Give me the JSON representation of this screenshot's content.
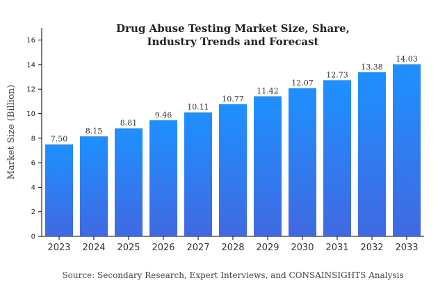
{
  "chart_data": {
    "type": "bar",
    "title_lines": [
      "Drug Abuse Testing Market Size, Share,",
      "Industry Trends and Forecast"
    ],
    "xlabel": "",
    "ylabel": "Market Size (Billion)",
    "source": "Source: Secondary Research, Expert Interviews, and CONSAINSIGHTS Analysis",
    "categories": [
      "2023",
      "2024",
      "2025",
      "2026",
      "2027",
      "2028",
      "2029",
      "2030",
      "2031",
      "2032",
      "2033"
    ],
    "values": [
      7.5,
      8.15,
      8.81,
      9.46,
      10.11,
      10.77,
      11.42,
      12.07,
      12.73,
      13.38,
      14.03
    ],
    "value_labels": [
      "7.50",
      "8.15",
      "8.81",
      "9.46",
      "10.11",
      "10.77",
      "11.42",
      "12.07",
      "12.73",
      "13.38",
      "14.03"
    ],
    "ylim": [
      0,
      17
    ],
    "yticks": [
      0,
      2,
      4,
      6,
      8,
      10,
      12,
      14,
      16
    ],
    "grid": false,
    "legend": "none",
    "bar_gradient": {
      "top": "#1E90FF",
      "bottom": "#4169E1"
    },
    "axis_color": "#000000"
  }
}
